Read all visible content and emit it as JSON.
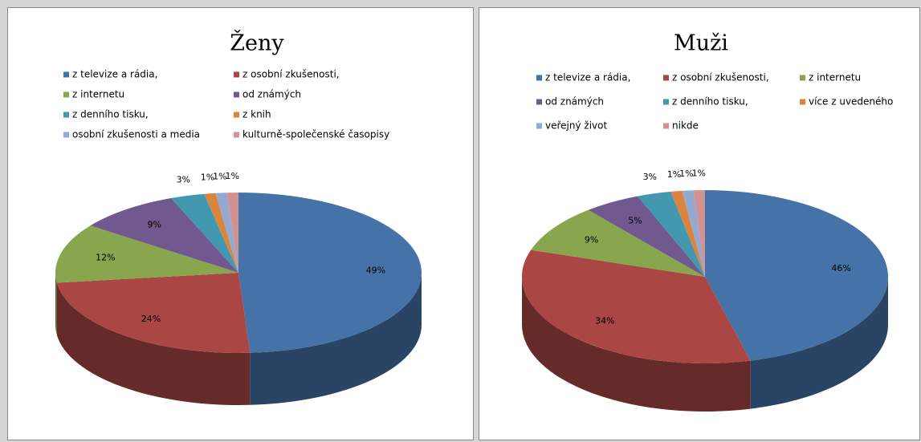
{
  "chart_data": [
    {
      "type": "pie3d",
      "title": "Ženy",
      "categories": [
        "z televize a rádia,",
        "z osobní zkušenosti,",
        "z internetu",
        "od známých",
        "z denního tisku,",
        "z knih",
        "osobní zkušenosti a media",
        "kulturně-společenské časopisy"
      ],
      "values": [
        49,
        24,
        12,
        9,
        3,
        1,
        1,
        1
      ],
      "value_labels": [
        "49%",
        "24%",
        "12%",
        "9%",
        "3%",
        "1%",
        "1%",
        "1%"
      ],
      "colors": [
        "#4572a7",
        "#aa4643",
        "#89a54e",
        "#71588f",
        "#4198af",
        "#db843d",
        "#93a9cf",
        "#d19392"
      ]
    },
    {
      "type": "pie3d",
      "title": "Muži",
      "categories": [
        "z televize a rádia,",
        "z osobní zkušenosti,",
        "z internetu",
        "od známých",
        "z denního tisku,",
        "více z uvedeného",
        "veřejný život",
        "nikde"
      ],
      "values": [
        46,
        34,
        9,
        5,
        3,
        1,
        1,
        1
      ],
      "value_labels": [
        "46%",
        "34%",
        "9%",
        "5%",
        "3%",
        "1%",
        "1%",
        "1%"
      ],
      "colors": [
        "#4572a7",
        "#aa4643",
        "#89a54e",
        "#71588f",
        "#4198af",
        "#db843d",
        "#93a9cf",
        "#d19392"
      ]
    }
  ]
}
